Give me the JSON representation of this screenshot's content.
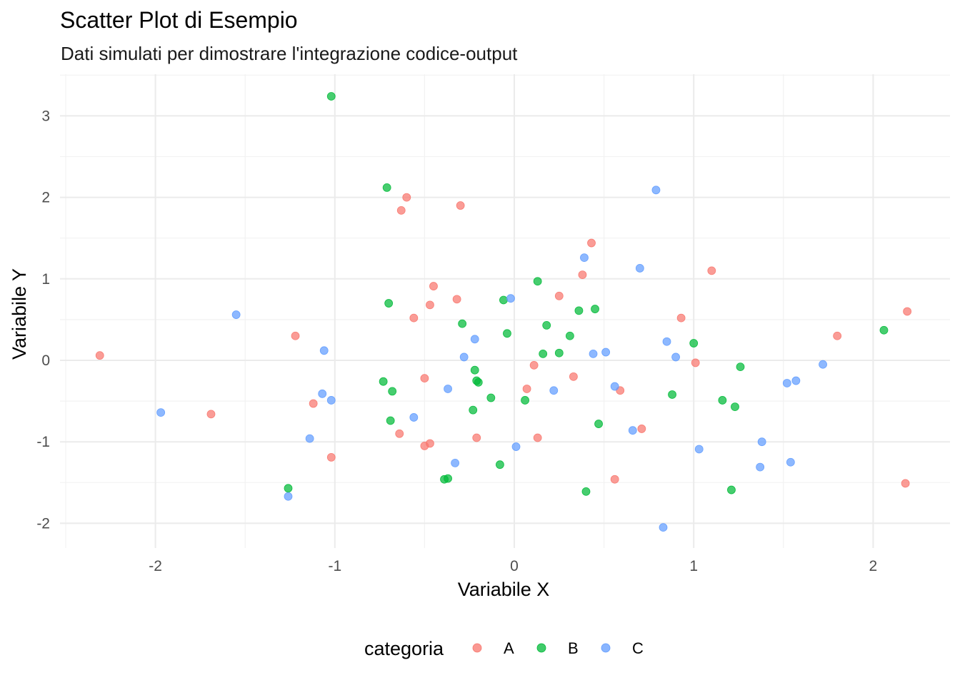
{
  "chart_data": {
    "type": "scatter",
    "title": "Scatter Plot di Esempio",
    "subtitle": "Dati simulati per dimostrare l'integrazione codice-output",
    "xlabel": "Variabile X",
    "ylabel": "Variabile Y",
    "xlim": [
      -2.5,
      2.4
    ],
    "ylim": [
      -2.3,
      3.5
    ],
    "x_ticks": [
      -2,
      -1,
      0,
      1,
      2
    ],
    "x_tick_labels": [
      "-2",
      "-1",
      "0",
      "1",
      "2"
    ],
    "y_ticks": [
      -2,
      -1,
      0,
      1,
      2,
      3
    ],
    "y_tick_labels": [
      "-2",
      "-1",
      "0",
      "1",
      "2",
      "3"
    ],
    "grid": true,
    "legend": {
      "title": "categoria",
      "position": "bottom"
    },
    "series": [
      {
        "name": "A",
        "color": "#F8766D",
        "points": [
          [
            -2.31,
            0.06
          ],
          [
            -1.69,
            -0.66
          ],
          [
            -1.22,
            0.3
          ],
          [
            -1.12,
            -0.53
          ],
          [
            -1.02,
            -1.19
          ],
          [
            -0.64,
            -0.9
          ],
          [
            -0.63,
            1.84
          ],
          [
            -0.6,
            2.0
          ],
          [
            -0.56,
            0.52
          ],
          [
            -0.5,
            -0.22
          ],
          [
            -0.5,
            -1.05
          ],
          [
            -0.47,
            -1.02
          ],
          [
            -0.47,
            0.68
          ],
          [
            -0.45,
            0.91
          ],
          [
            -0.32,
            0.75
          ],
          [
            -0.3,
            1.9
          ],
          [
            -0.21,
            -0.95
          ],
          [
            0.07,
            -0.35
          ],
          [
            0.11,
            -0.06
          ],
          [
            0.13,
            -0.95
          ],
          [
            0.25,
            0.79
          ],
          [
            0.33,
            -0.2
          ],
          [
            0.38,
            1.05
          ],
          [
            0.43,
            1.44
          ],
          [
            0.56,
            -1.46
          ],
          [
            0.59,
            -0.37
          ],
          [
            0.71,
            -0.84
          ],
          [
            0.93,
            0.52
          ],
          [
            1.01,
            -0.03
          ],
          [
            1.1,
            1.1
          ],
          [
            1.8,
            0.3
          ],
          [
            2.18,
            -1.51
          ],
          [
            2.19,
            0.6
          ]
        ]
      },
      {
        "name": "B",
        "color": "#00BA38",
        "points": [
          [
            -1.26,
            -1.57
          ],
          [
            -1.02,
            3.24
          ],
          [
            -0.73,
            -0.26
          ],
          [
            -0.71,
            2.12
          ],
          [
            -0.7,
            0.7
          ],
          [
            -0.69,
            -0.74
          ],
          [
            -0.68,
            -0.38
          ],
          [
            -0.39,
            -1.46
          ],
          [
            -0.37,
            -1.45
          ],
          [
            -0.29,
            0.45
          ],
          [
            -0.23,
            -0.61
          ],
          [
            -0.22,
            -0.12
          ],
          [
            -0.21,
            -0.25
          ],
          [
            -0.2,
            -0.27
          ],
          [
            -0.13,
            -0.46
          ],
          [
            -0.08,
            -1.28
          ],
          [
            -0.06,
            0.74
          ],
          [
            -0.04,
            0.33
          ],
          [
            0.06,
            -0.49
          ],
          [
            0.13,
            0.97
          ],
          [
            0.16,
            0.08
          ],
          [
            0.18,
            0.43
          ],
          [
            0.25,
            0.09
          ],
          [
            0.31,
            0.3
          ],
          [
            0.36,
            0.61
          ],
          [
            0.4,
            -1.61
          ],
          [
            0.45,
            0.63
          ],
          [
            0.47,
            -0.78
          ],
          [
            0.88,
            -0.42
          ],
          [
            1.0,
            0.21
          ],
          [
            1.16,
            -0.49
          ],
          [
            1.21,
            -1.59
          ],
          [
            1.23,
            -0.57
          ],
          [
            1.26,
            -0.08
          ],
          [
            2.06,
            0.37
          ]
        ]
      },
      {
        "name": "C",
        "color": "#619CFF",
        "points": [
          [
            -1.97,
            -0.64
          ],
          [
            -1.55,
            0.56
          ],
          [
            -1.26,
            -1.67
          ],
          [
            -1.14,
            -0.96
          ],
          [
            -1.07,
            -0.41
          ],
          [
            -1.06,
            0.12
          ],
          [
            -1.02,
            -0.49
          ],
          [
            -0.56,
            -0.7
          ],
          [
            -0.37,
            -0.35
          ],
          [
            -0.33,
            -1.26
          ],
          [
            -0.28,
            0.04
          ],
          [
            -0.22,
            0.26
          ],
          [
            -0.02,
            0.76
          ],
          [
            0.01,
            -1.06
          ],
          [
            0.22,
            -0.37
          ],
          [
            0.39,
            1.26
          ],
          [
            0.44,
            0.08
          ],
          [
            0.51,
            0.1
          ],
          [
            0.56,
            -0.32
          ],
          [
            0.66,
            -0.86
          ],
          [
            0.7,
            1.13
          ],
          [
            0.79,
            2.09
          ],
          [
            0.83,
            -2.05
          ],
          [
            0.85,
            0.23
          ],
          [
            0.9,
            0.04
          ],
          [
            1.03,
            -1.09
          ],
          [
            1.37,
            -1.31
          ],
          [
            1.38,
            -1.0
          ],
          [
            1.52,
            -0.28
          ],
          [
            1.54,
            -1.25
          ],
          [
            1.57,
            -0.25
          ],
          [
            1.72,
            -0.05
          ]
        ]
      }
    ]
  }
}
